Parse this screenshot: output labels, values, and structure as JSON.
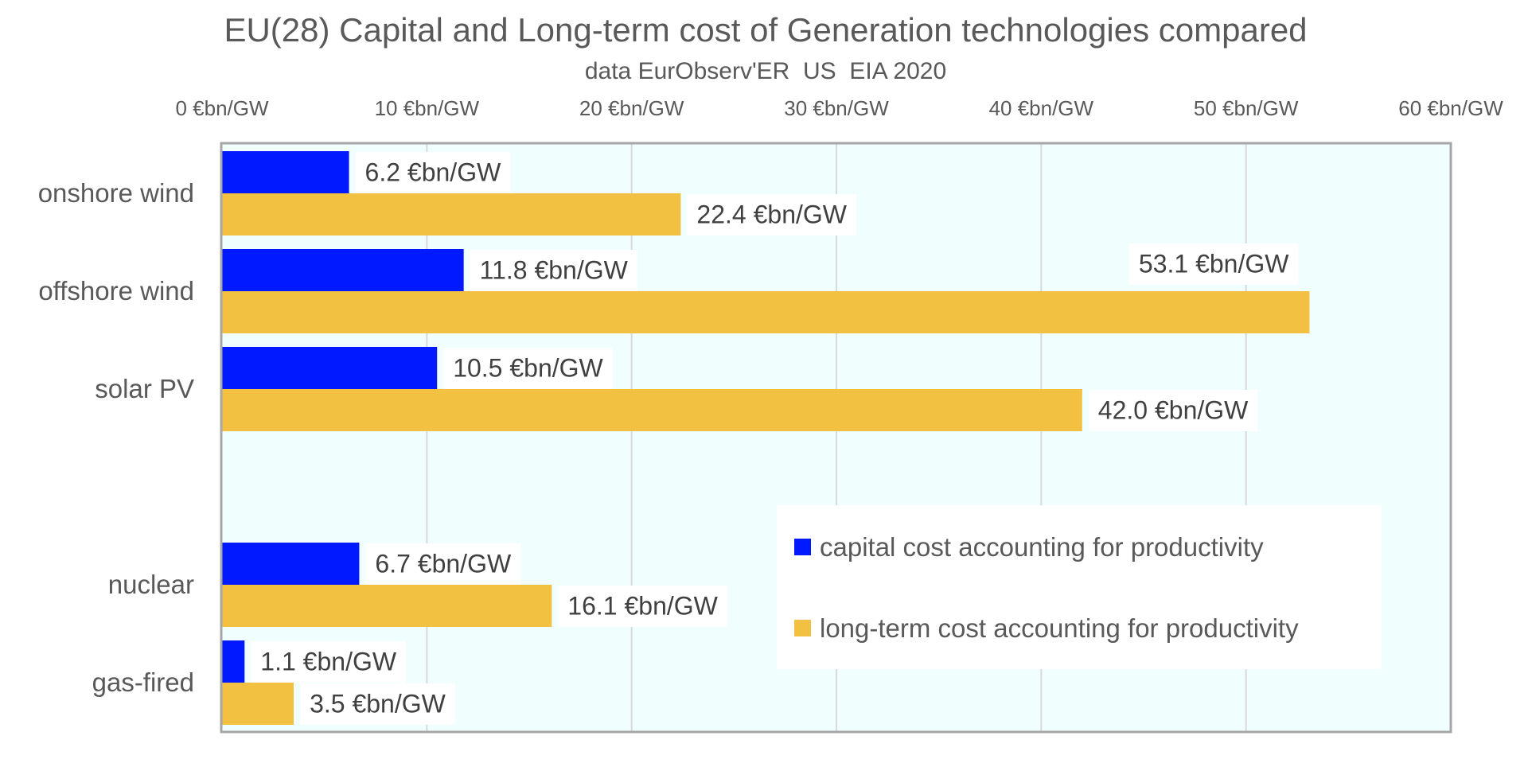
{
  "chart_data": {
    "type": "bar",
    "orientation": "horizontal",
    "title": "EU(28) Capital and Long-term cost of Generation technologies compared",
    "subtitle": "data EurObserv'ER  US  EIA 2020",
    "xlabel": "",
    "ylabel": "",
    "xlim": [
      0,
      60
    ],
    "x_ticks": [
      0,
      10,
      20,
      30,
      40,
      50,
      60
    ],
    "x_tick_labels": [
      "0 €bn/GW",
      "10 €bn/GW",
      "20 €bn/GW",
      "30 €bn/GW",
      "40 €bn/GW",
      "50 €bn/GW",
      "60 €bn/GW"
    ],
    "x_axis_position": "top",
    "grid": true,
    "categories": [
      "onshore wind",
      "offshore wind",
      "solar PV",
      "",
      "nuclear",
      "gas-fired"
    ],
    "series": [
      {
        "name": "capital cost accounting for productivity",
        "color": "#0019ff",
        "values": [
          6.2,
          11.8,
          10.5,
          null,
          6.7,
          1.1
        ],
        "labels": [
          "6.2 €bn/GW",
          "11.8 €bn/GW",
          "10.5 €bn/GW",
          null,
          "6.7 €bn/GW",
          "1.1 €bn/GW"
        ]
      },
      {
        "name": "long-term cost accounting for productivity",
        "color": "#f3c142",
        "values": [
          22.4,
          53.1,
          42.0,
          null,
          16.1,
          3.5
        ],
        "labels": [
          "22.4 €bn/GW",
          "53.1 €bn/GW",
          "42.0 €bn/GW",
          null,
          "16.1 €bn/GW",
          "3.5 €bn/GW"
        ]
      }
    ],
    "legend_position": "bottom-right (inside plot)",
    "colors": {
      "plot_background": "#f0fffe",
      "plot_border": "#a6a6a6",
      "gridline": "#d9d9d9",
      "text": "#595959",
      "data_label_text": "#404040"
    }
  }
}
